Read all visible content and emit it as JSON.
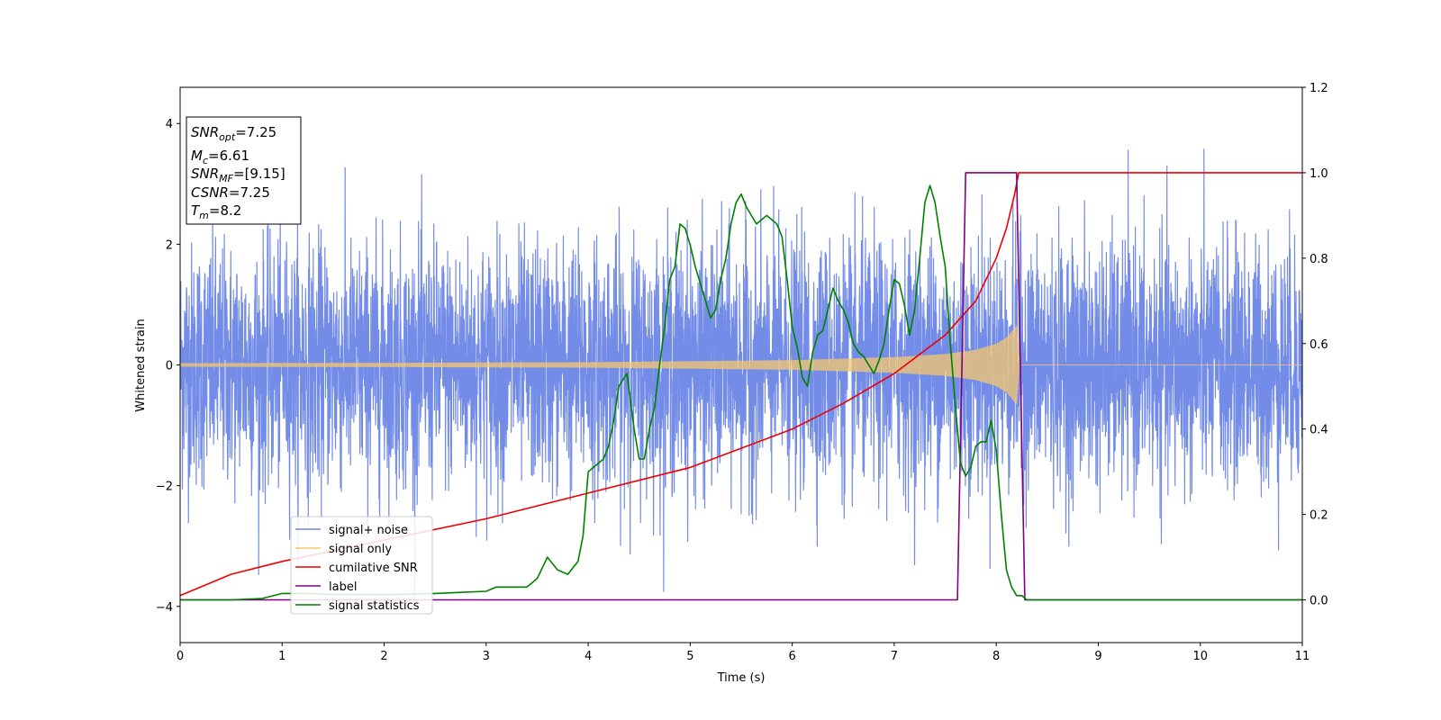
{
  "chart_data": {
    "type": "line",
    "xlabel": "Time (s)",
    "ylabel": "Whitened strain",
    "xlim": [
      0,
      11
    ],
    "ylim_left": [
      -4.6,
      4.6
    ],
    "ylim_right": [
      -0.1,
      1.2
    ],
    "x_ticks": [
      0,
      1,
      2,
      3,
      4,
      5,
      6,
      7,
      8,
      9,
      10,
      11
    ],
    "y_ticks_left": [
      -4,
      -2,
      0,
      2,
      4
    ],
    "y_ticks_right": [
      "0.0",
      "0.2",
      "0.4",
      "0.6",
      "0.8",
      "1.0",
      "1.2"
    ],
    "grid": false,
    "legend_position": "lower-left",
    "info_box": {
      "line1_main": "SNR",
      "line1_sub": "opt",
      "line1_value": "=7.25",
      "line2_main": "M",
      "line2_sub": "c",
      "line2_value": "=6.61",
      "line3_main": "SNR",
      "line3_sub": "MF",
      "line3_value": "=[9.15]",
      "line4_main": "CSNR",
      "line4_value": "=7.25",
      "line5_main": "T",
      "line5_sub": "m",
      "line5_value": "=8.2"
    },
    "series": [
      {
        "name": "signal+ noise",
        "color": "#6b86e6",
        "axis": "left",
        "description_range": [
          -4.1,
          4.2
        ],
        "note_sigma": 1.0
      },
      {
        "name": "signal only",
        "color": "#f5c76e",
        "axis": "left",
        "amplitude_envelope": {
          "x": [
            0.0,
            2.0,
            4.0,
            6.0,
            7.0,
            7.5,
            7.8,
            8.0,
            8.1,
            8.2,
            8.23
          ],
          "y": [
            0.03,
            0.035,
            0.045,
            0.08,
            0.13,
            0.18,
            0.25,
            0.35,
            0.45,
            0.65,
            0.0
          ]
        }
      },
      {
        "name": "cumilative SNR",
        "color": "#ee0000",
        "axis": "right",
        "x": [
          0.0,
          0.5,
          1.0,
          2.0,
          3.0,
          4.0,
          5.0,
          6.0,
          6.5,
          7.0,
          7.5,
          7.8,
          8.0,
          8.1,
          8.18,
          8.22,
          11.0
        ],
        "y": [
          0.01,
          0.06,
          0.09,
          0.14,
          0.19,
          0.25,
          0.31,
          0.4,
          0.46,
          0.53,
          0.62,
          0.7,
          0.8,
          0.87,
          0.95,
          1.0,
          1.0
        ]
      },
      {
        "name": "label",
        "color": "#800080",
        "axis": "right",
        "x": [
          0.0,
          7.62,
          7.7,
          8.2,
          8.28,
          11.0
        ],
        "y": [
          0.0,
          0.0,
          1.0,
          1.0,
          0.0,
          0.0
        ]
      },
      {
        "name": "signal statistics",
        "color": "#008000",
        "axis": "right",
        "x": [
          0.0,
          0.5,
          0.8,
          1.0,
          1.2,
          1.5,
          2.0,
          2.5,
          3.0,
          3.1,
          3.3,
          3.4,
          3.5,
          3.6,
          3.7,
          3.8,
          3.9,
          3.95,
          4.0,
          4.05,
          4.1,
          4.15,
          4.2,
          4.25,
          4.3,
          4.38,
          4.45,
          4.5,
          4.55,
          4.6,
          4.65,
          4.7,
          4.75,
          4.8,
          4.85,
          4.9,
          4.95,
          5.0,
          5.05,
          5.1,
          5.15,
          5.2,
          5.25,
          5.3,
          5.35,
          5.4,
          5.45,
          5.5,
          5.55,
          5.6,
          5.65,
          5.7,
          5.75,
          5.8,
          5.85,
          5.9,
          5.95,
          6.0,
          6.05,
          6.1,
          6.15,
          6.2,
          6.25,
          6.3,
          6.35,
          6.4,
          6.45,
          6.5,
          6.55,
          6.6,
          6.65,
          6.7,
          6.75,
          6.8,
          6.85,
          6.9,
          6.95,
          7.0,
          7.05,
          7.1,
          7.15,
          7.2,
          7.25,
          7.3,
          7.35,
          7.4,
          7.45,
          7.5,
          7.55,
          7.6,
          7.65,
          7.7,
          7.75,
          7.8,
          7.85,
          7.9,
          7.95,
          8.0,
          8.05,
          8.1,
          8.15,
          8.2,
          8.25,
          8.3,
          8.4,
          8.6,
          9.0,
          9.5,
          10.0,
          10.5,
          11.0
        ],
        "y": [
          0.0,
          0.0,
          0.003,
          0.015,
          0.015,
          0.013,
          0.012,
          0.015,
          0.02,
          0.03,
          0.03,
          0.03,
          0.05,
          0.1,
          0.07,
          0.06,
          0.09,
          0.15,
          0.3,
          0.31,
          0.32,
          0.33,
          0.36,
          0.42,
          0.5,
          0.53,
          0.4,
          0.33,
          0.33,
          0.4,
          0.45,
          0.55,
          0.64,
          0.75,
          0.78,
          0.88,
          0.87,
          0.83,
          0.78,
          0.74,
          0.7,
          0.66,
          0.68,
          0.75,
          0.8,
          0.88,
          0.93,
          0.95,
          0.92,
          0.9,
          0.88,
          0.89,
          0.9,
          0.89,
          0.88,
          0.85,
          0.75,
          0.64,
          0.59,
          0.52,
          0.5,
          0.58,
          0.62,
          0.63,
          0.68,
          0.73,
          0.7,
          0.68,
          0.65,
          0.6,
          0.58,
          0.57,
          0.55,
          0.53,
          0.56,
          0.6,
          0.68,
          0.75,
          0.74,
          0.69,
          0.62,
          0.68,
          0.8,
          0.93,
          0.97,
          0.93,
          0.85,
          0.78,
          0.6,
          0.45,
          0.32,
          0.29,
          0.31,
          0.36,
          0.37,
          0.37,
          0.42,
          0.35,
          0.2,
          0.07,
          0.03,
          0.01,
          0.01,
          0.0,
          0.0,
          0.0,
          0.0,
          0.0,
          0.0,
          0.0,
          0.0
        ]
      }
    ]
  }
}
